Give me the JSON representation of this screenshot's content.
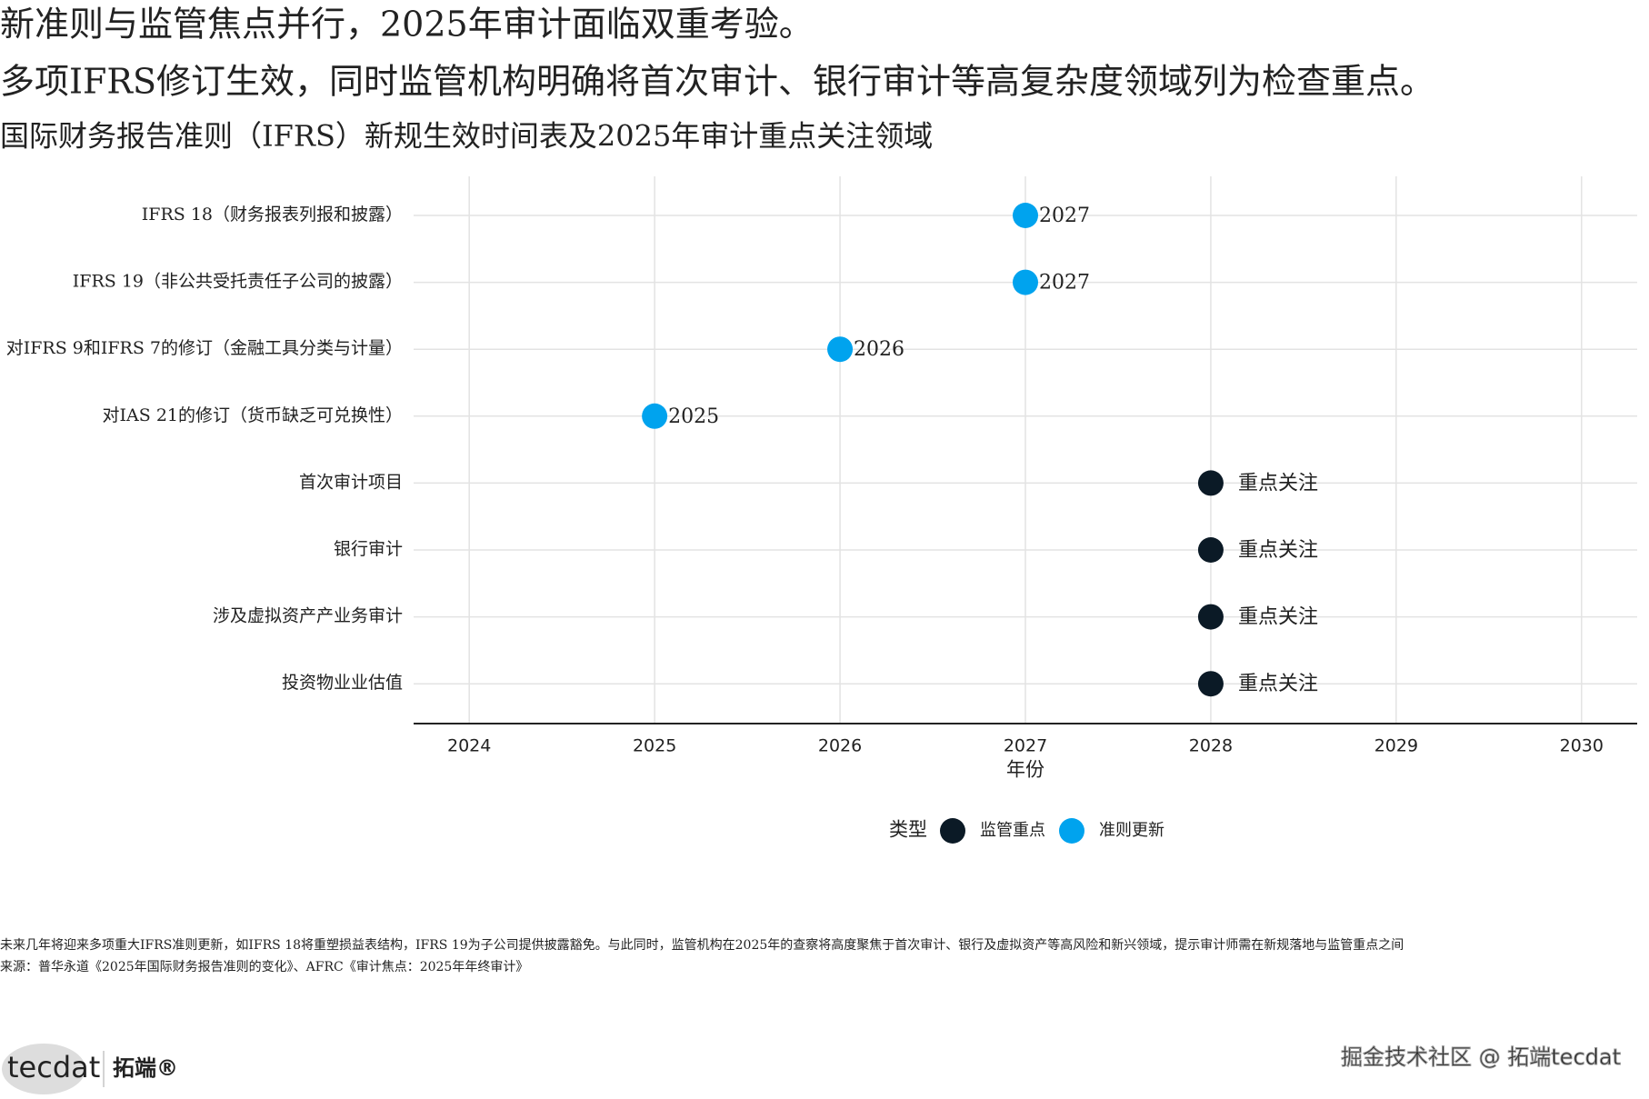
{
  "chart_data": {
    "type": "dot",
    "title": [
      "新准则与监管焦点并行，2025年审计面临双重考验。",
      "多项IFRS修订生效，同时监管机构明确将首次审计、银行审计等高复杂度领域列为检查重点。"
    ],
    "subtitle": "国际财务报告准则（IFRS）新规生效时间表及2025年审计重点关注领域",
    "caption": [
      "未来几年将迎来多项重大IFRS准则更新，如IFRS 18将重塑损益表结构，IFRS 19为子公司提供披露豁免。与此同时，监管机构在2025年的查察将高度聚焦于首次审计、银行及虚拟资产等高风险和新兴领域，提示审计师需在新规落地与监管重点之间",
      "来源：普华永道《2025年国际财务报告准则的变化》、AFRC《审计焦点：2025年年终审计》"
    ],
    "x_label": "年份",
    "categories": [
      "IFRS 18（财务报表列报和披露）",
      "IFRS 19（非公共受托责任子公司的披露）",
      "对IFRS 9和IFRS 7的修订（金融工具分类与计量）",
      "对IAS 21的修订（货币缺乏可兑换性）",
      "首次审计项目",
      "银行审计",
      "涉及虚拟资产产业务审计",
      "投资物业业估值"
    ],
    "series": [
      {
        "name": "监管重点",
        "color": "#0b1a26",
        "values": [
          null,
          null,
          null,
          null,
          2028,
          2028,
          2028,
          2028
        ],
        "labels": [
          null,
          null,
          null,
          null,
          "重点关注",
          "重点关注",
          "重点关注",
          "重点关注"
        ]
      },
      {
        "name": "准则更新",
        "color": "#00a3ee",
        "values": [
          2027,
          2027,
          2026,
          2025,
          null,
          null,
          null,
          null
        ]
      }
    ],
    "xlim": [
      2023.7,
      2030.3
    ],
    "xticks": [
      2024,
      2025,
      2026,
      2027,
      2028,
      2029,
      2030
    ],
    "grid": true,
    "legend_title": "类型",
    "legend": "bottom"
  },
  "footer": {
    "logo": "tecdat",
    "brand": "拓端®",
    "watermark": "掘金技术社区 @ 拓端tecdat"
  }
}
